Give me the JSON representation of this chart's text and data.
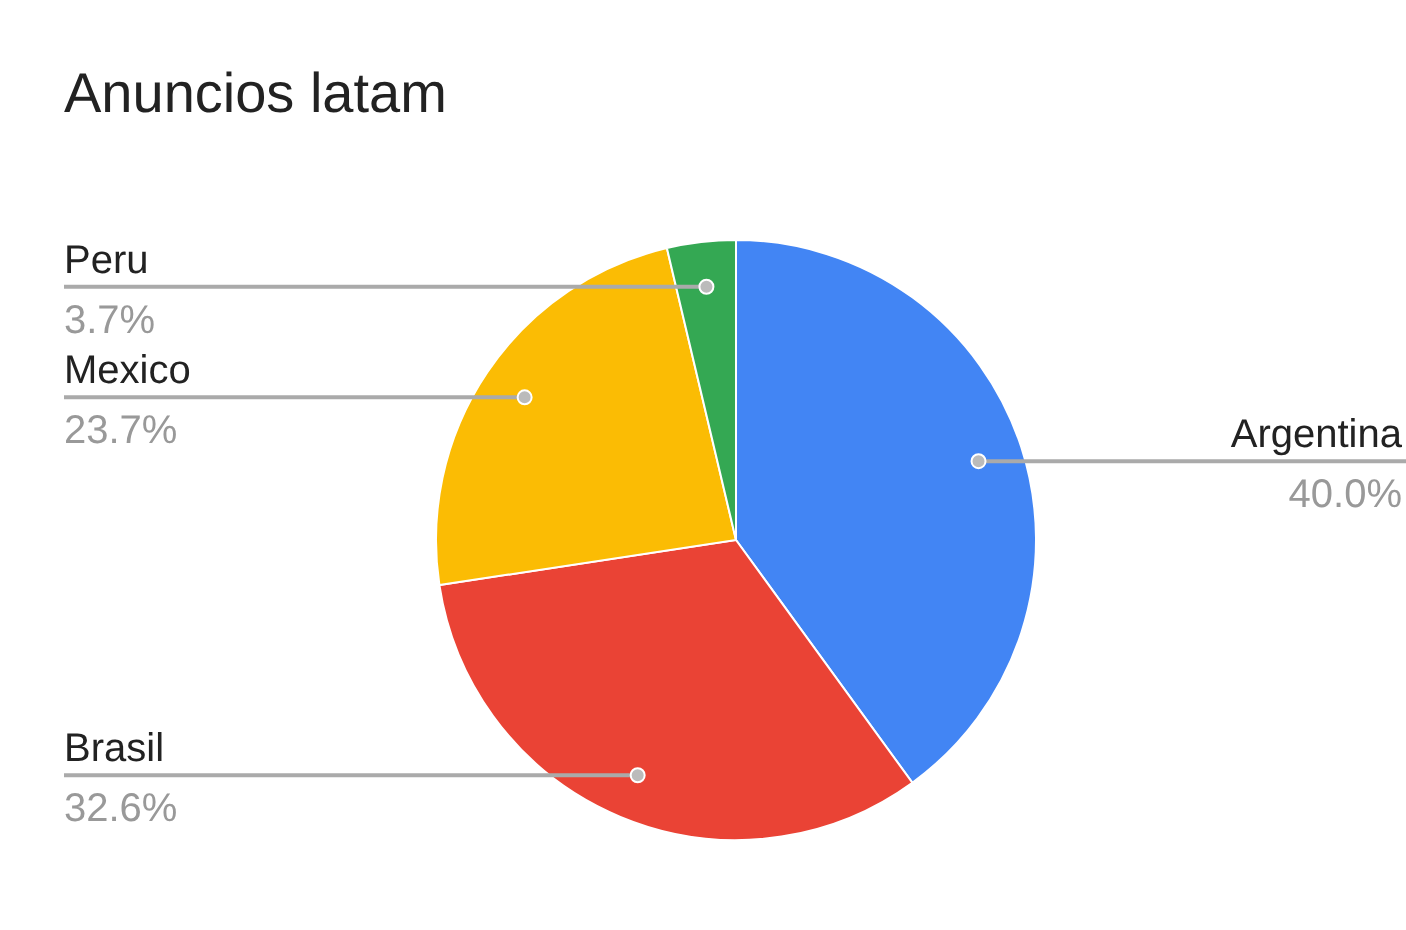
{
  "chart_data": {
    "type": "pie",
    "title": "Anuncios latam",
    "categories": [
      "Argentina",
      "Brasil",
      "Mexico",
      "Peru"
    ],
    "values": [
      40.0,
      32.6,
      23.7,
      3.7
    ],
    "colors": [
      "#4285f4",
      "#ea4335",
      "#fbbc04",
      "#34a853"
    ],
    "value_labels": [
      "40.0%",
      "32.6%",
      "23.7%",
      "3.7%"
    ],
    "legend": false
  }
}
